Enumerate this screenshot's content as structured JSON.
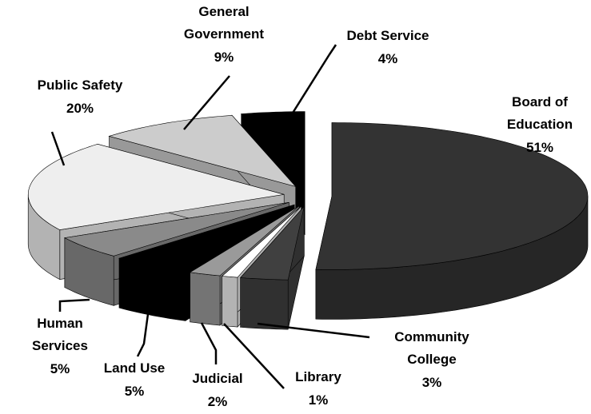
{
  "chart_data": {
    "type": "pie",
    "categories": [
      "Board of Education",
      "Community College",
      "Library",
      "Judicial",
      "Land Use",
      "Human Services",
      "Public Safety",
      "General Government",
      "Debt Service"
    ],
    "values": [
      51,
      3,
      1,
      2,
      5,
      5,
      20,
      9,
      4
    ],
    "value_labels": [
      "51%",
      "3%",
      "1%",
      "2%",
      "5%",
      "5%",
      "20%",
      "9%",
      "4%"
    ],
    "colors": [
      "#333333",
      "#404040",
      "#ffffff",
      "#9a9a9a",
      "#000000",
      "#8a8a8a",
      "#eeeeee",
      "#cccccc",
      "#000000"
    ]
  }
}
